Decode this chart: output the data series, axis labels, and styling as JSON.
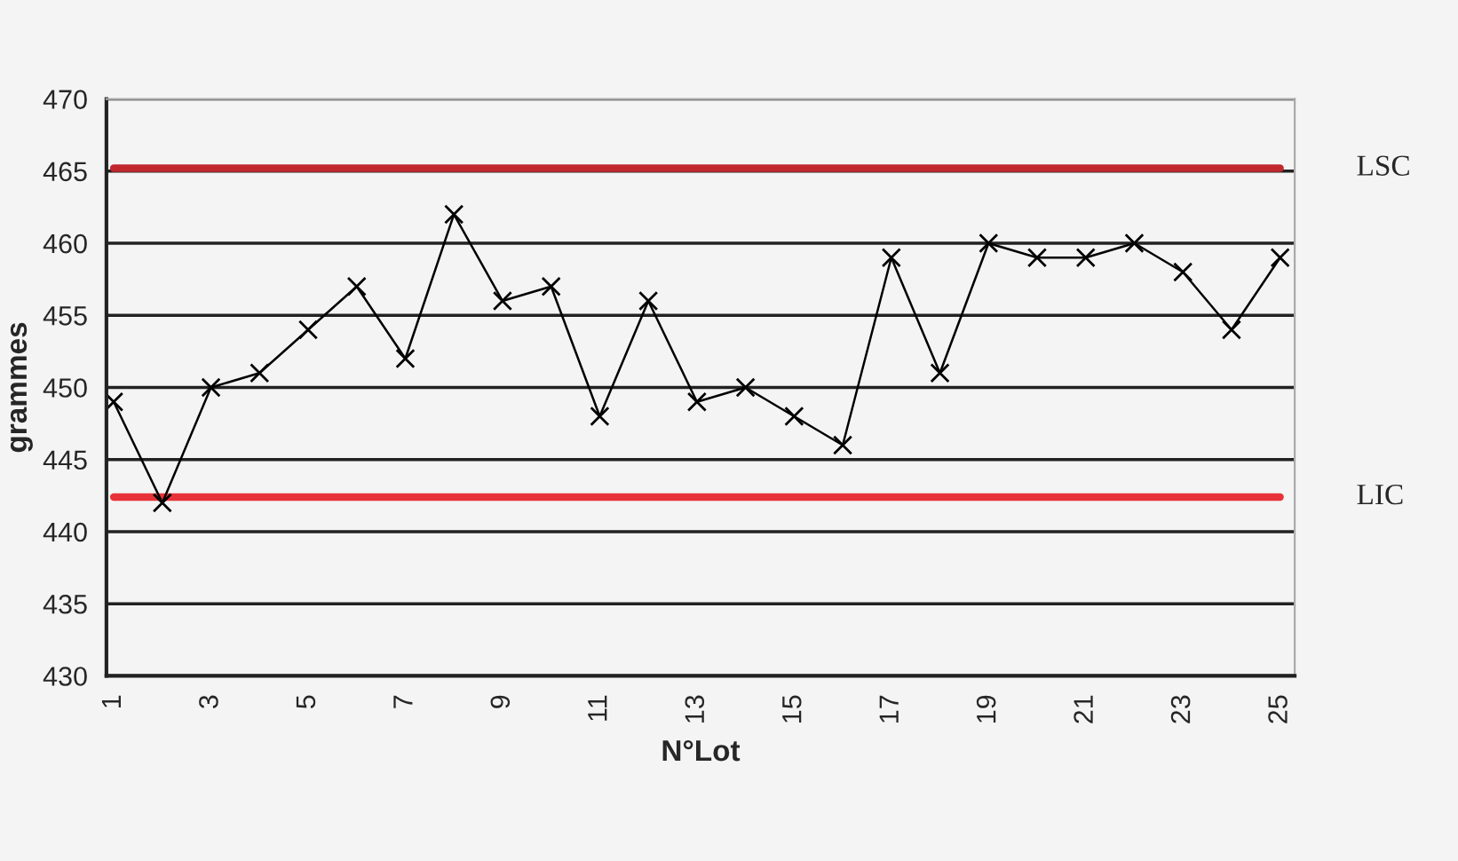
{
  "chart_data": {
    "type": "line",
    "xlabel": "N°Lot",
    "ylabel": "grammes",
    "categories": [
      "1",
      null,
      "3",
      null,
      "5",
      null,
      "7",
      null,
      "9",
      null,
      "11",
      null,
      "13",
      null,
      "15",
      null,
      "17",
      null,
      "19",
      null,
      "21",
      null,
      "23",
      null,
      "25"
    ],
    "series": [
      {
        "color": "#000000",
        "values": [
          449,
          442,
          450,
          451,
          454,
          457,
          452,
          462,
          456,
          457,
          448,
          456,
          449,
          450,
          448,
          446,
          459,
          451,
          460,
          459,
          459,
          460,
          458,
          454,
          459
        ]
      }
    ],
    "ylim": [
      430,
      470
    ],
    "yticks": [
      430,
      435,
      440,
      445,
      450,
      455,
      460,
      465,
      470
    ],
    "ref_lines": [
      {
        "axis": "y",
        "value": 465.2,
        "label": "LSC",
        "color": "#c0282e"
      },
      {
        "axis": "y",
        "value": 442.4,
        "label": "LIC",
        "color": "#e8323a"
      }
    ],
    "grid": "y",
    "marker": "cross",
    "line_style": "solid"
  }
}
